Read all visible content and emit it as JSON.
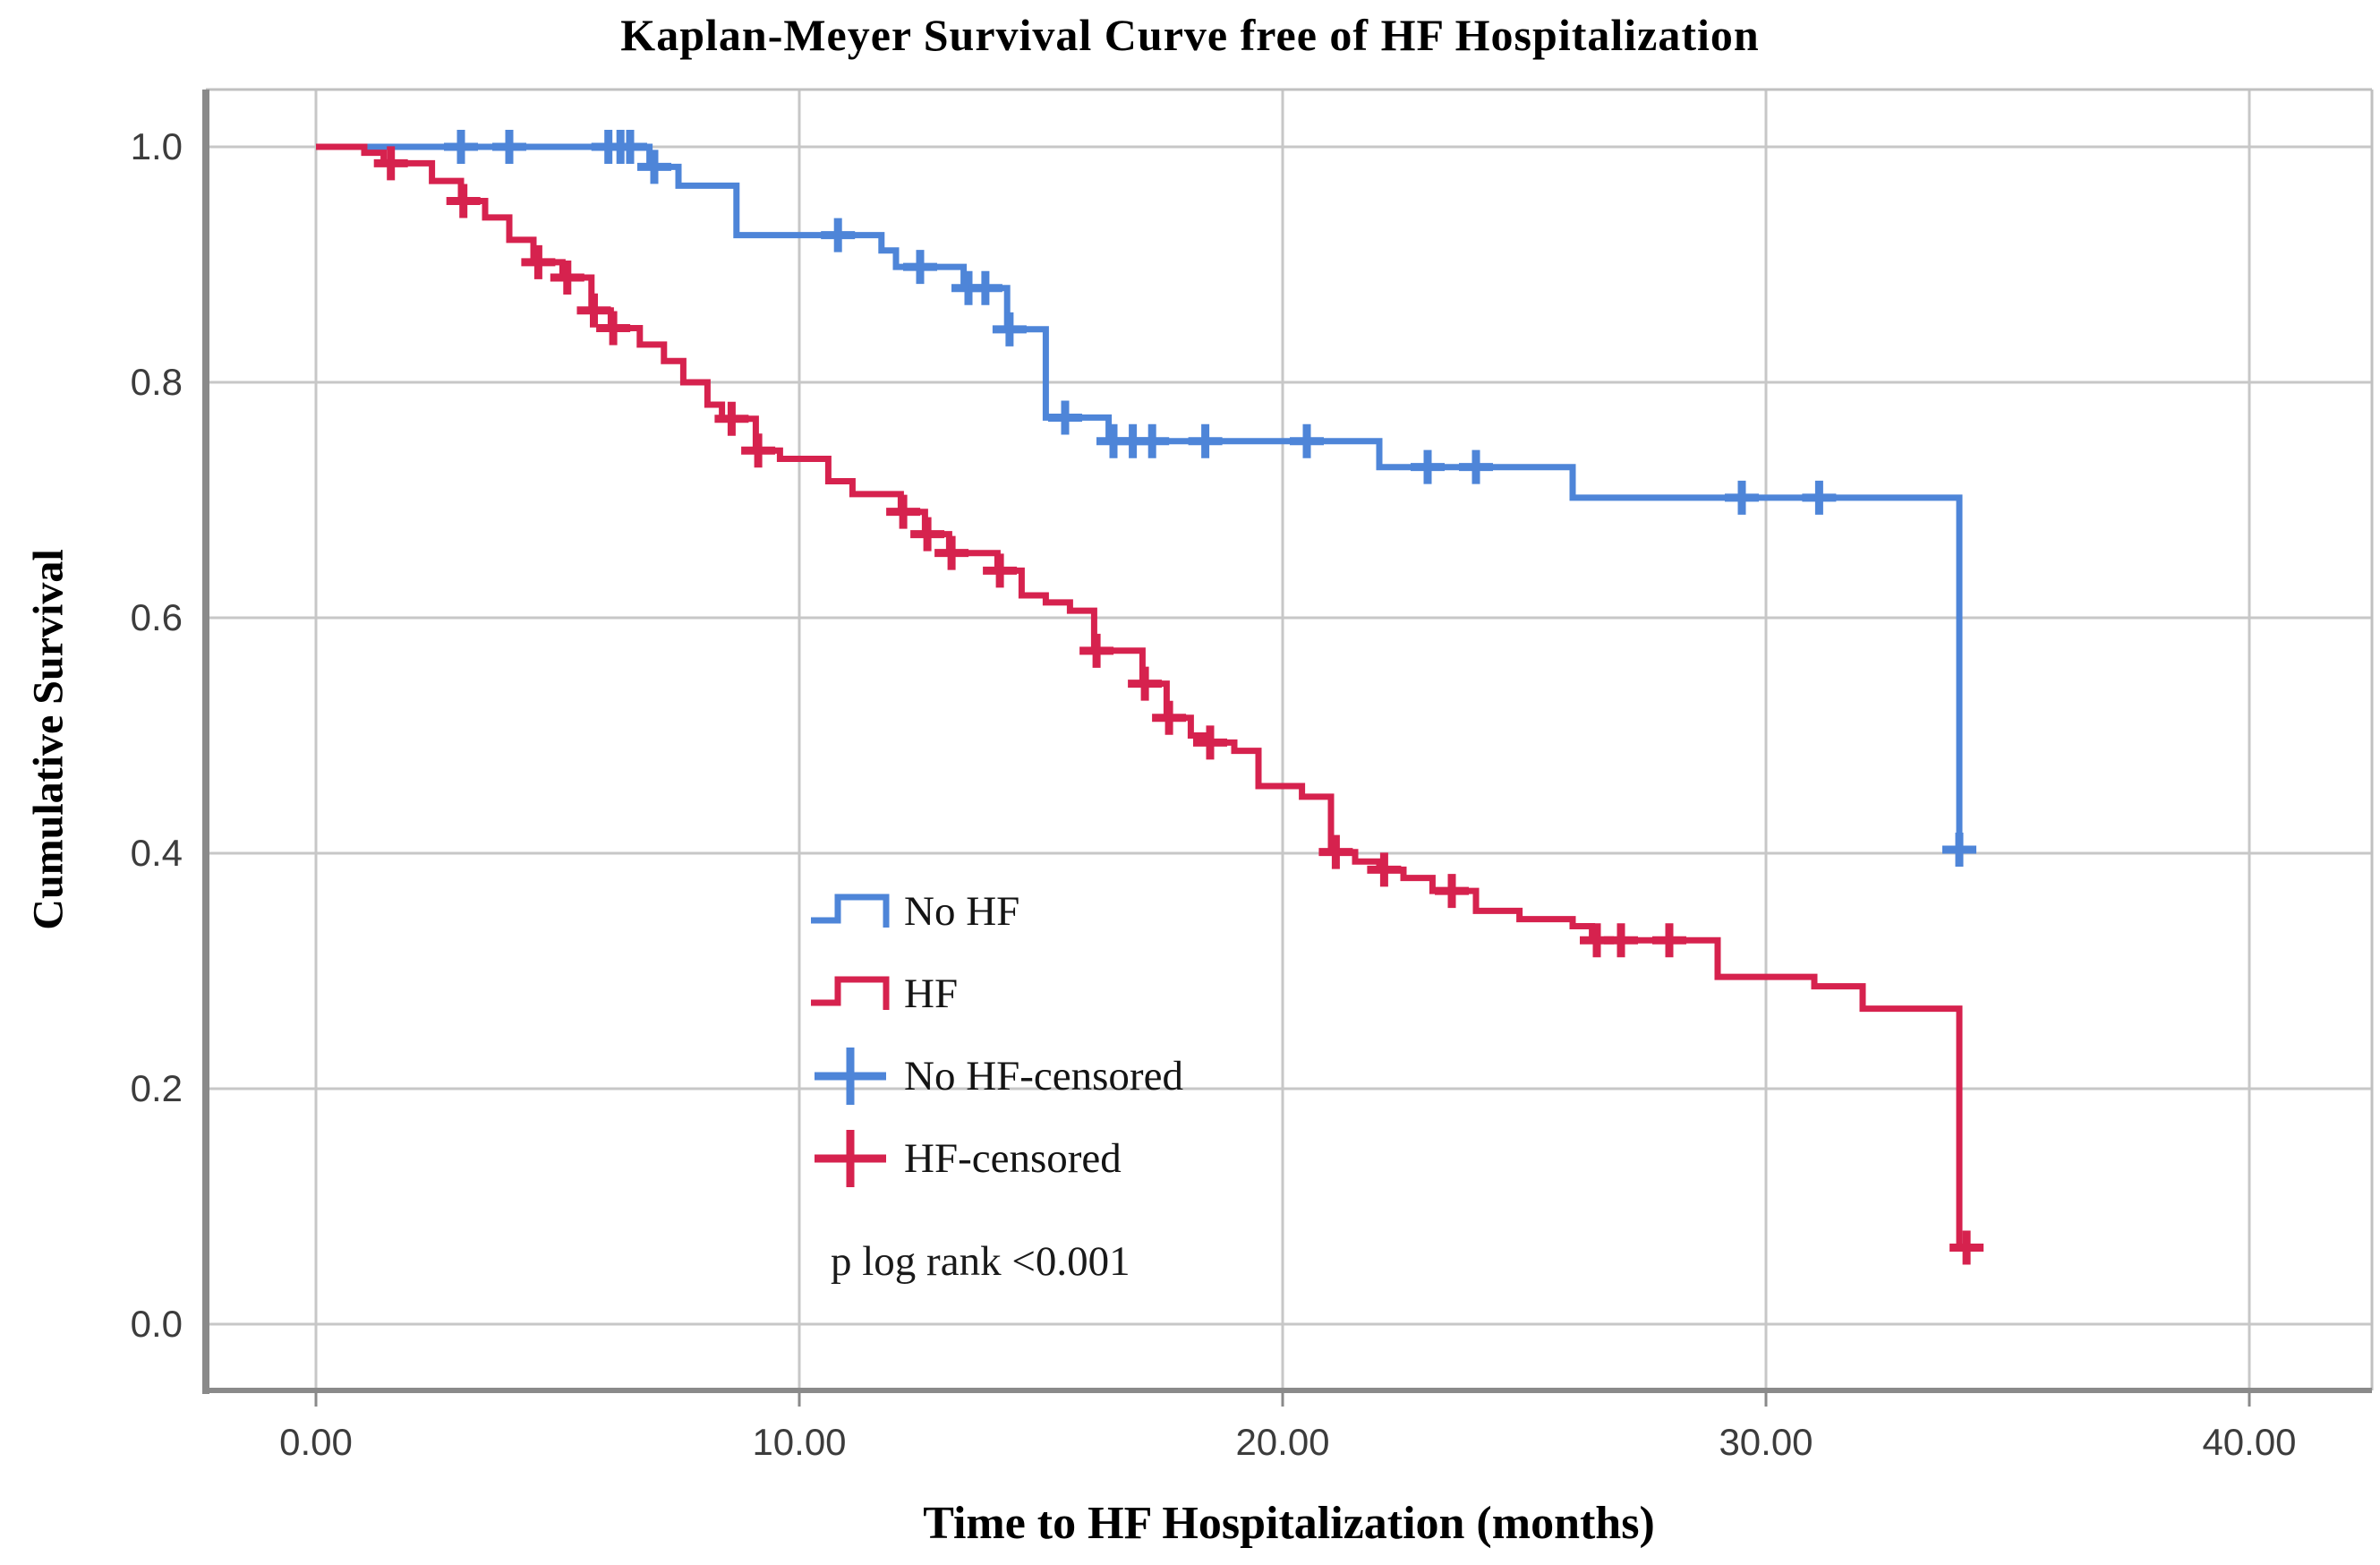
{
  "figure": {
    "title": "Kaplan-Meyer Survival Curve free of HF Hospitalization",
    "x_axis_label": "Time to HF Hospitalization (months)",
    "y_axis_label": "Cumulative Survival",
    "annotation": "p log rank <0.001"
  },
  "legend": {
    "items": [
      {
        "label": "No HF",
        "symbol": "step-line",
        "color": "#4E85D8"
      },
      {
        "label": "HF",
        "symbol": "step-line",
        "color": "#D6224E"
      },
      {
        "label": "No HF-censored",
        "symbol": "censor-plus",
        "color": "#4E85D8"
      },
      {
        "label": "HF-censored",
        "symbol": "censor-plus",
        "color": "#D6224E"
      }
    ]
  },
  "chart_data": {
    "type": "line",
    "subtype": "kaplan-meier-step",
    "title": "Kaplan-Meyer Survival Curve free of HF Hospitalization",
    "xlabel": "Time to HF Hospitalization (months)",
    "ylabel": "Cumulative Survival",
    "xlim": [
      -2.3,
      42.5
    ],
    "ylim": [
      -0.06,
      1.05
    ],
    "grid": true,
    "legend_position": "inside-center-left",
    "annotation": "p log rank <0.001",
    "x_ticks": [
      {
        "value": 0,
        "label": "0.00"
      },
      {
        "value": 10,
        "label": "10.00"
      },
      {
        "value": 20,
        "label": "20.00"
      },
      {
        "value": 30,
        "label": "30.00"
      },
      {
        "value": 40,
        "label": "40.00"
      }
    ],
    "y_ticks": [
      {
        "value": 1.0,
        "label": "1.0"
      },
      {
        "value": 0.8,
        "label": "0.8"
      },
      {
        "value": 0.6,
        "label": "0.6"
      },
      {
        "value": 0.4,
        "label": "0.4"
      },
      {
        "value": 0.2,
        "label": "0.2"
      },
      {
        "value": 0.0,
        "label": "0.0"
      }
    ],
    "style": {
      "grid_color": "#c7c7c7",
      "frame_color": "#c0c0c0",
      "axis_color": "#8a8a8a",
      "tick_label_color": "#3c3c3c",
      "line_width": 7,
      "censor_arm": 19,
      "censor_stroke": 9
    },
    "series": [
      {
        "name": "No HF",
        "color": "#4E85D8",
        "start": [
          0,
          1.0
        ],
        "end_t": 34.15,
        "steps": [
          [
            6.9,
            0.983
          ],
          [
            7.5,
            0.967
          ],
          [
            8.7,
            0.925
          ],
          [
            11.7,
            0.912
          ],
          [
            12.0,
            0.898
          ],
          [
            13.4,
            0.88
          ],
          [
            14.3,
            0.845
          ],
          [
            15.1,
            0.77
          ],
          [
            16.4,
            0.75
          ],
          [
            22.0,
            0.728
          ],
          [
            26.0,
            0.702
          ],
          [
            34.0,
            0.403
          ]
        ],
        "censors": [
          [
            3.0,
            1.0
          ],
          [
            4.0,
            1.0
          ],
          [
            6.05,
            1.0
          ],
          [
            6.3,
            1.0
          ],
          [
            6.5,
            1.0
          ],
          [
            7.0,
            0.983
          ],
          [
            10.8,
            0.925
          ],
          [
            12.5,
            0.898
          ],
          [
            13.5,
            0.88
          ],
          [
            13.85,
            0.88
          ],
          [
            14.35,
            0.845
          ],
          [
            15.5,
            0.77
          ],
          [
            16.5,
            0.75
          ],
          [
            16.9,
            0.75
          ],
          [
            17.3,
            0.75
          ],
          [
            18.4,
            0.75
          ],
          [
            20.5,
            0.75
          ],
          [
            23.0,
            0.728
          ],
          [
            24.0,
            0.728
          ],
          [
            29.5,
            0.702
          ],
          [
            31.1,
            0.702
          ],
          [
            34.0,
            0.403
          ]
        ]
      },
      {
        "name": "HF",
        "color": "#D6224E",
        "start": [
          0,
          1.0
        ],
        "end_t": 34.35,
        "steps": [
          [
            1.0,
            0.995
          ],
          [
            1.4,
            0.986
          ],
          [
            2.4,
            0.971
          ],
          [
            3.0,
            0.954
          ],
          [
            3.5,
            0.94
          ],
          [
            4.0,
            0.921
          ],
          [
            4.5,
            0.902
          ],
          [
            5.1,
            0.889
          ],
          [
            5.7,
            0.861
          ],
          [
            6.1,
            0.846
          ],
          [
            6.7,
            0.832
          ],
          [
            7.2,
            0.818
          ],
          [
            7.6,
            0.8
          ],
          [
            8.1,
            0.781
          ],
          [
            8.4,
            0.769
          ],
          [
            9.1,
            0.742
          ],
          [
            9.6,
            0.735
          ],
          [
            10.6,
            0.716
          ],
          [
            11.1,
            0.705
          ],
          [
            12.1,
            0.69
          ],
          [
            12.6,
            0.671
          ],
          [
            13.1,
            0.655
          ],
          [
            14.1,
            0.64
          ],
          [
            14.6,
            0.619
          ],
          [
            15.1,
            0.613
          ],
          [
            15.6,
            0.606
          ],
          [
            16.1,
            0.572
          ],
          [
            17.1,
            0.544
          ],
          [
            17.6,
            0.515
          ],
          [
            18.1,
            0.5
          ],
          [
            18.4,
            0.494
          ],
          [
            19.0,
            0.487
          ],
          [
            19.5,
            0.457
          ],
          [
            20.4,
            0.448
          ],
          [
            21.0,
            0.401
          ],
          [
            21.5,
            0.393
          ],
          [
            22.0,
            0.386
          ],
          [
            22.5,
            0.379
          ],
          [
            23.1,
            0.368
          ],
          [
            24.0,
            0.351
          ],
          [
            24.9,
            0.344
          ],
          [
            26.0,
            0.338
          ],
          [
            26.4,
            0.326
          ],
          [
            29.0,
            0.295
          ],
          [
            31.0,
            0.287
          ],
          [
            32.0,
            0.268
          ],
          [
            34.0,
            0.065
          ]
        ],
        "censors": [
          [
            1.55,
            0.986
          ],
          [
            3.05,
            0.954
          ],
          [
            4.6,
            0.902
          ],
          [
            5.2,
            0.889
          ],
          [
            5.75,
            0.861
          ],
          [
            6.15,
            0.846
          ],
          [
            8.6,
            0.769
          ],
          [
            9.15,
            0.742
          ],
          [
            12.15,
            0.69
          ],
          [
            12.65,
            0.671
          ],
          [
            13.15,
            0.655
          ],
          [
            14.15,
            0.64
          ],
          [
            16.15,
            0.572
          ],
          [
            17.15,
            0.544
          ],
          [
            17.65,
            0.515
          ],
          [
            18.5,
            0.494
          ],
          [
            21.1,
            0.401
          ],
          [
            22.1,
            0.386
          ],
          [
            23.5,
            0.368
          ],
          [
            26.5,
            0.326
          ],
          [
            27.0,
            0.326
          ],
          [
            28.0,
            0.326
          ],
          [
            34.15,
            0.065
          ]
        ]
      }
    ]
  }
}
